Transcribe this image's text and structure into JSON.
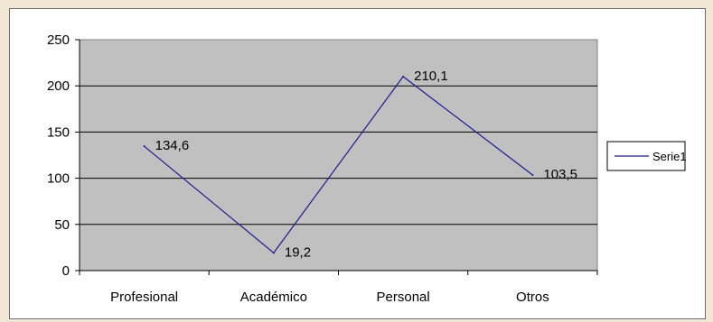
{
  "chart_data": {
    "type": "line",
    "categories": [
      "Profesional",
      "Académico",
      "Personal",
      "Otros"
    ],
    "series": [
      {
        "name": "Serie1",
        "values": [
          134.6,
          19.2,
          210.1,
          103.5
        ],
        "color": "#1f1a8c"
      }
    ],
    "data_labels": [
      "134,6",
      "19,2",
      "210,1",
      "103,5"
    ],
    "y_ticks": [
      0,
      50,
      100,
      150,
      200,
      250
    ],
    "ylim": [
      0,
      250
    ],
    "grid": true,
    "plot_background": "#c0c0c0",
    "legend": {
      "position": "right",
      "entries": [
        "Serie1"
      ]
    },
    "title": "",
    "xlabel": "",
    "ylabel": ""
  }
}
